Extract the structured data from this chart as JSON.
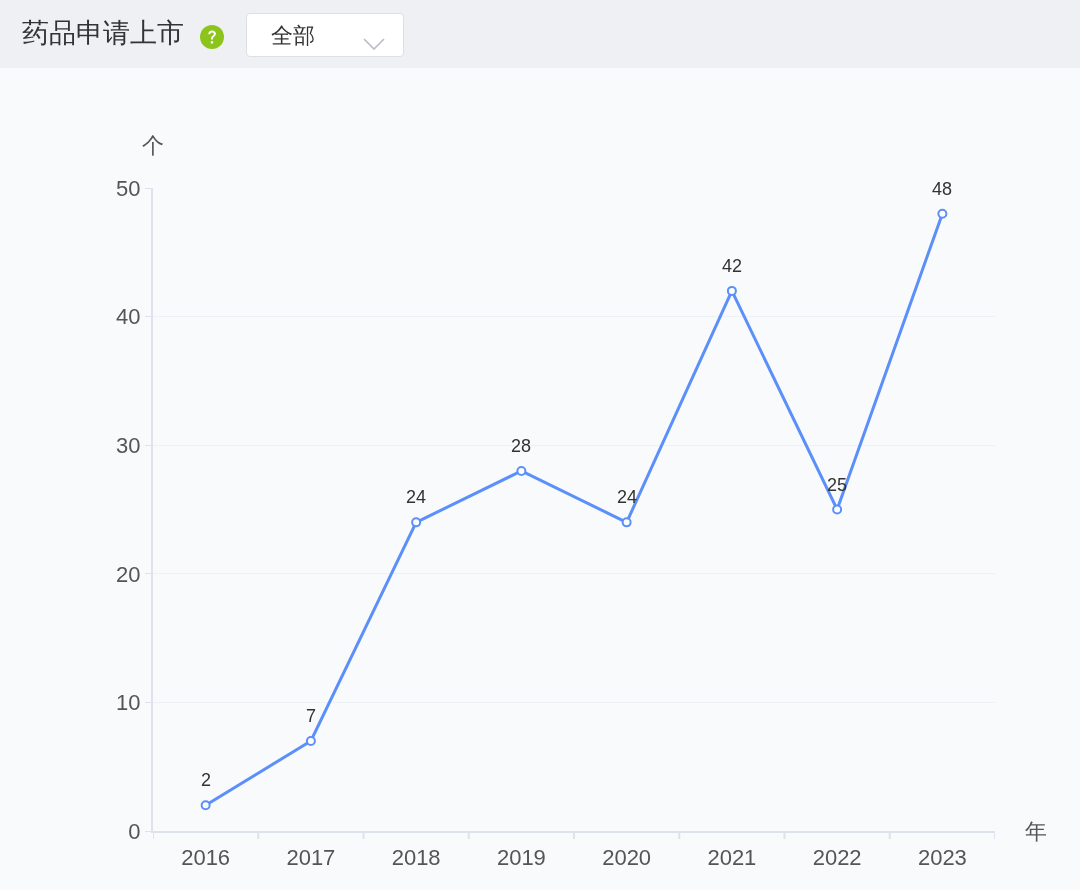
{
  "chart_data": {
    "type": "line",
    "title": "药品申请上市",
    "annotations": [
      "全部"
    ],
    "xlabel": "年",
    "ylabel": "个",
    "categories": [
      "2016",
      "2017",
      "2018",
      "2019",
      "2020",
      "2021",
      "2022",
      "2023"
    ],
    "series": [
      {
        "color": "#5b8ff9",
        "values": [
          2,
          7,
          24,
          28,
          24,
          42,
          25,
          48
        ]
      }
    ],
    "ylim": [
      0,
      50
    ],
    "yticks": [
      0,
      10,
      20,
      30,
      40,
      50
    ],
    "grid": "y",
    "marker": "circle",
    "line_style": "solid",
    "data_labels": true
  }
}
